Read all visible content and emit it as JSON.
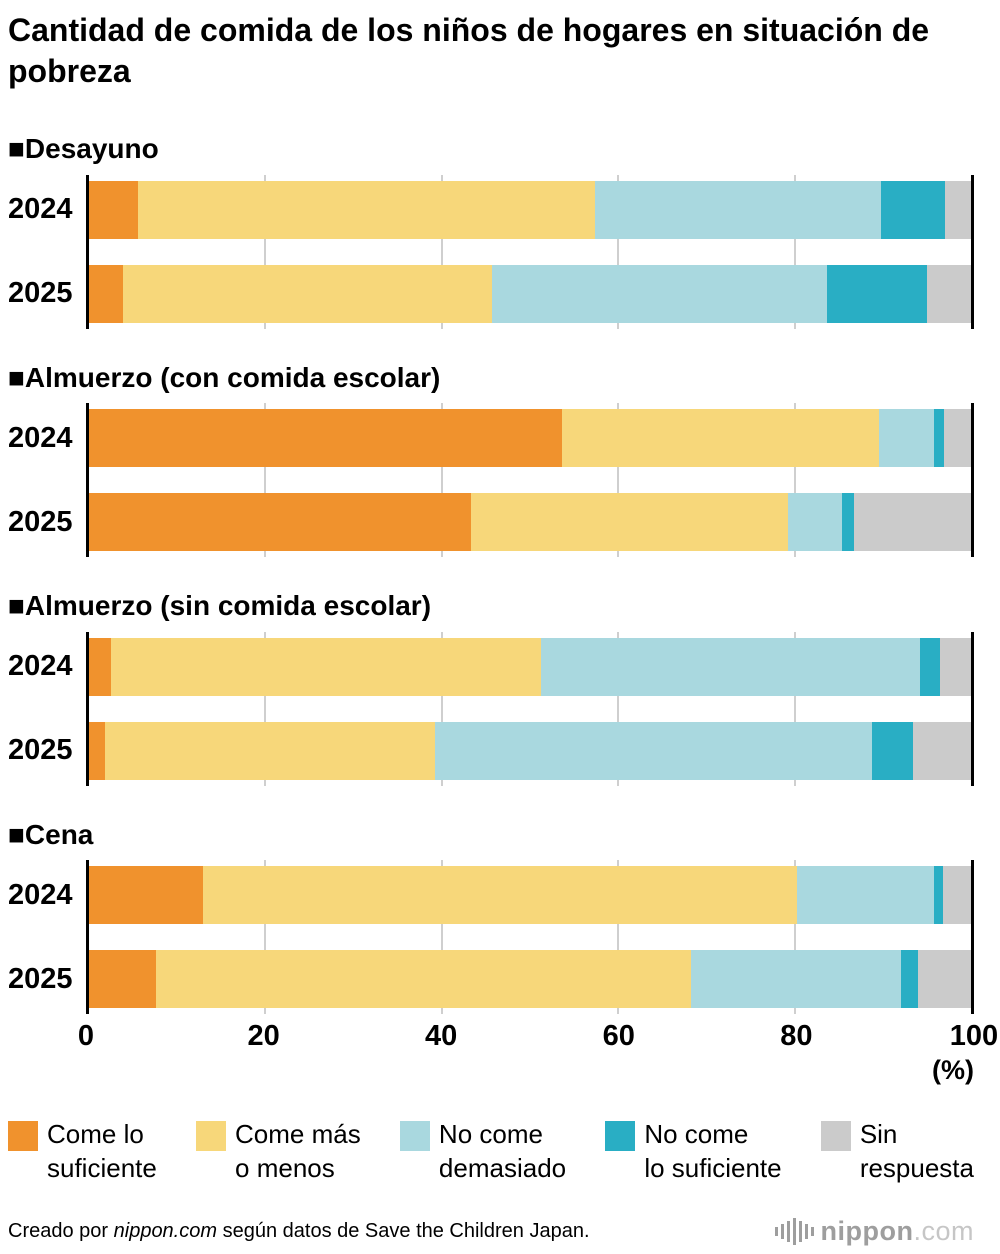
{
  "title": "Cantidad de comida de los niños de hogares en situación de pobreza",
  "chart_data": {
    "type": "bar",
    "orientation": "horizontal",
    "stacked": true,
    "unit": "%",
    "xlim": [
      0,
      100
    ],
    "x_ticks": [
      0,
      20,
      40,
      60,
      80,
      100
    ],
    "axis_unit_label": "(%)",
    "grid": true,
    "legend_position": "bottom",
    "colors": [
      "#F0922D",
      "#F7D77A",
      "#A9D8DF",
      "#29AEC4",
      "#CBCBCB"
    ],
    "series_names": [
      "Come lo suficiente",
      "Come más o menos",
      "No come demasiado",
      "No come lo suficiente",
      "Sin respuesta"
    ],
    "legend": [
      {
        "line1": "Come lo",
        "line2": "suficiente"
      },
      {
        "line1": "Come más",
        "line2": "o menos"
      },
      {
        "line1": "No come",
        "line2": "demasiado"
      },
      {
        "line1": "No come",
        "line2": "lo suficiente"
      },
      {
        "line1": "Sin",
        "line2": "respuesta"
      }
    ],
    "groups": [
      {
        "title": "■Desayuno",
        "rows": [
          {
            "year": "2024",
            "values": [
              5.6,
              51.8,
              32.4,
              7.2,
              3.0
            ]
          },
          {
            "year": "2025",
            "values": [
              3.9,
              41.8,
              38.0,
              11.3,
              5.0
            ]
          }
        ]
      },
      {
        "title": "■Almuerzo (con comida escolar)",
        "rows": [
          {
            "year": "2024",
            "values": [
              53.6,
              36.0,
              6.2,
              1.1,
              3.1
            ]
          },
          {
            "year": "2025",
            "values": [
              43.3,
              35.9,
              6.2,
              1.3,
              13.3
            ]
          }
        ]
      },
      {
        "title": "■Almuerzo (sin comida escolar)",
        "rows": [
          {
            "year": "2024",
            "values": [
              2.5,
              48.7,
              43.0,
              2.3,
              3.5
            ]
          },
          {
            "year": "2025",
            "values": [
              1.8,
              37.4,
              49.6,
              4.6,
              6.6
            ]
          }
        ]
      },
      {
        "title": "■Cena",
        "rows": [
          {
            "year": "2024",
            "values": [
              12.9,
              67.4,
              15.5,
              1.0,
              3.2
            ]
          },
          {
            "year": "2025",
            "values": [
              7.6,
              60.6,
              23.9,
              1.9,
              6.0
            ]
          }
        ]
      }
    ]
  },
  "footer": {
    "prefix": "Creado por ",
    "brand": "nippon.com",
    "suffix": " según datos de Save the Children Japan.",
    "logo_text": "nippon",
    "logo_suffix": ".com"
  }
}
